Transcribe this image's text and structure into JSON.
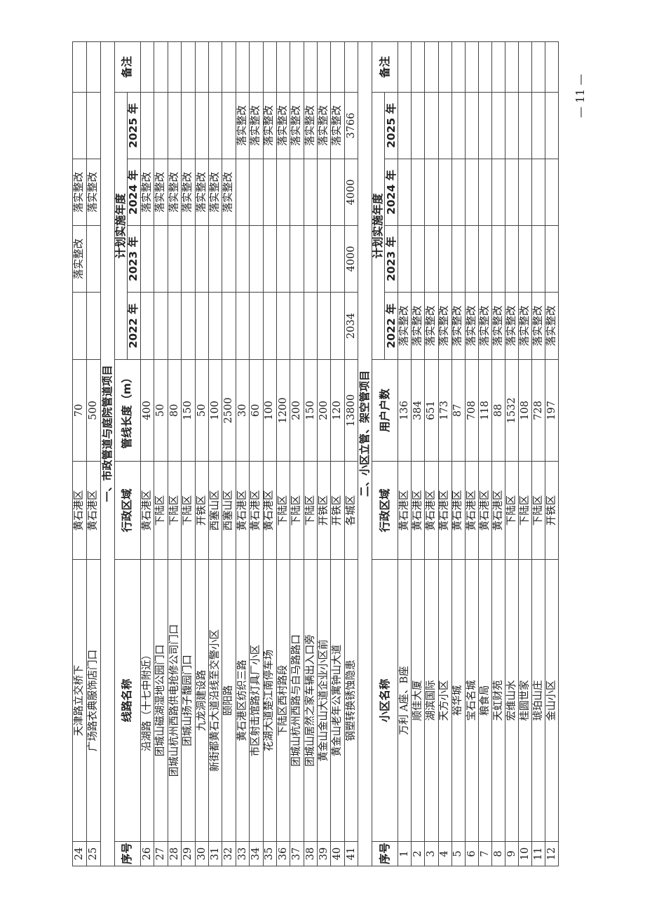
{
  "section1": {
    "title": "一、市政管道与庭院管道项目",
    "headers": {
      "no": "序号",
      "name": "线路名称",
      "district": "行政区域",
      "length": "管线长度（m）",
      "plan": "计划实施年度",
      "y2022": "2022 年",
      "y2023": "2023 年",
      "y2024": "2024 年",
      "y2025": "2025 年",
      "note": "备注"
    },
    "pre_rows": [
      {
        "no": "24",
        "name": "天津路立交桥下",
        "district": "黄石港区",
        "value": "70",
        "y2022": "",
        "y2023": "落实整改",
        "y2024": "落实整改",
        "y2025": "",
        "note": ""
      },
      {
        "no": "25",
        "name": "广场路衣典服饰店门口",
        "district": "黄石港区",
        "value": "500",
        "y2022": "",
        "y2023": "",
        "y2024": "落实整改",
        "y2025": "",
        "note": ""
      }
    ],
    "rows": [
      {
        "no": "26",
        "name": "沿湖路（十七中附近）",
        "district": "黄石港区",
        "value": "400",
        "y2022": "",
        "y2023": "",
        "y2024": "落实整改",
        "y2025": "",
        "note": ""
      },
      {
        "no": "27",
        "name": "团城山磁湖湿地公园门口",
        "district": "下陆区",
        "value": "50",
        "y2022": "",
        "y2023": "",
        "y2024": "落实整改",
        "y2025": "",
        "note": ""
      },
      {
        "no": "28",
        "name": "团城山杭州西路供电抢修公司门口",
        "district": "下陆区",
        "value": "80",
        "y2022": "",
        "y2023": "",
        "y2024": "落实整改",
        "y2025": "",
        "note": ""
      },
      {
        "no": "29",
        "name": "团城山扬子馥园门口",
        "district": "下陆区",
        "value": "150",
        "y2022": "",
        "y2023": "",
        "y2024": "落实整改",
        "y2025": "",
        "note": ""
      },
      {
        "no": "30",
        "name": "九龙洞建设路",
        "district": "开铁区",
        "value": "50",
        "y2022": "",
        "y2023": "",
        "y2024": "落实整改",
        "y2025": "",
        "note": ""
      },
      {
        "no": "31",
        "name": "新街都黄石大道沿线至交警小区",
        "district": "西塞山区",
        "value": "100",
        "y2022": "",
        "y2023": "",
        "y2024": "落实整改",
        "y2025": "",
        "note": ""
      },
      {
        "no": "32",
        "name": "颐阳路",
        "district": "西塞山区",
        "value": "2500",
        "y2022": "",
        "y2023": "",
        "y2024": "落实整改",
        "y2025": "",
        "note": ""
      },
      {
        "no": "33",
        "name": "黄石港区纺织三路",
        "district": "黄石港区",
        "value": "30",
        "y2022": "",
        "y2023": "",
        "y2024": "",
        "y2025": "落实整改",
        "note": ""
      },
      {
        "no": "34",
        "name": "市区射击馆路灯具厂小区",
        "district": "黄石港区",
        "value": "60",
        "y2022": "",
        "y2023": "",
        "y2024": "",
        "y2025": "落实整改",
        "note": ""
      },
      {
        "no": "35",
        "name": "花湖大道楚江南停车场",
        "district": "黄石港区",
        "value": "100",
        "y2022": "",
        "y2023": "",
        "y2024": "",
        "y2025": "落实整改",
        "note": ""
      },
      {
        "no": "36",
        "name": "下陆区西村路段",
        "district": "下陆区",
        "value": "1200",
        "y2022": "",
        "y2023": "",
        "y2024": "",
        "y2025": "落实整改",
        "note": ""
      },
      {
        "no": "37",
        "name": "团城山杭州西路与白马路路口",
        "district": "下陆区",
        "value": "200",
        "y2022": "",
        "y2023": "",
        "y2024": "",
        "y2025": "落实整改",
        "note": ""
      },
      {
        "no": "38",
        "name": "团城山居然之家车辆出入口旁",
        "district": "下陆区",
        "value": "150",
        "y2022": "",
        "y2023": "",
        "y2024": "",
        "y2025": "落实整改",
        "note": ""
      },
      {
        "no": "39",
        "name": "黄金山金山大道企业小区前",
        "district": "开铁区",
        "value": "200",
        "y2022": "",
        "y2023": "",
        "y2024": "",
        "y2025": "落实整改",
        "note": ""
      },
      {
        "no": "40",
        "name": "黄金山老年公寓钟山大道",
        "district": "开铁区",
        "value": "120",
        "y2022": "",
        "y2023": "",
        "y2024": "",
        "y2025": "落实整改",
        "note": ""
      },
      {
        "no": "41",
        "name": "钢塑转换锈蚀隐患",
        "district": "各城区",
        "value": "13800",
        "y2022": "2034",
        "y2023": "4000",
        "y2024": "4000",
        "y2025": "3766",
        "note": ""
      }
    ]
  },
  "section2": {
    "title": "二、小区立管、架空管项目",
    "headers": {
      "no": "序号",
      "name": "小区名称",
      "district": "行政区域",
      "length": "用户户数",
      "plan": "计划实施年度",
      "y2022": "2022 年",
      "y2023": "2023 年",
      "y2024": "2024 年",
      "y2025": "2025 年",
      "note": "备注"
    },
    "rows": [
      {
        "no": "1",
        "name": "万利 A座、B座",
        "district": "黄石港区",
        "value": "136",
        "y2022": "落实整改",
        "y2023": "",
        "y2024": "",
        "y2025": "",
        "note": ""
      },
      {
        "no": "2",
        "name": "顺佳大厦",
        "district": "黄石港区",
        "value": "384",
        "y2022": "落实整改",
        "y2023": "",
        "y2024": "",
        "y2025": "",
        "note": ""
      },
      {
        "no": "3",
        "name": "湖滨国际",
        "district": "黄石港区",
        "value": "651",
        "y2022": "落实整改",
        "y2023": "",
        "y2024": "",
        "y2025": "",
        "note": ""
      },
      {
        "no": "4",
        "name": "天方小区",
        "district": "黄石港区",
        "value": "173",
        "y2022": "落实整改",
        "y2023": "",
        "y2024": "",
        "y2025": "",
        "note": ""
      },
      {
        "no": "5",
        "name": "裕华城",
        "district": "黄石港区",
        "value": "87",
        "y2022": "落实整改",
        "y2023": "",
        "y2024": "",
        "y2025": "",
        "note": ""
      },
      {
        "no": "6",
        "name": "宝石名城",
        "district": "黄石港区",
        "value": "708",
        "y2022": "落实整改",
        "y2023": "",
        "y2024": "",
        "y2025": "",
        "note": ""
      },
      {
        "no": "7",
        "name": "粮食局",
        "district": "黄石港区",
        "value": "118",
        "y2022": "落实整改",
        "y2023": "",
        "y2024": "",
        "y2025": "",
        "note": ""
      },
      {
        "no": "8",
        "name": "天虹财苑",
        "district": "黄石港区",
        "value": "88",
        "y2022": "落实整改",
        "y2023": "",
        "y2024": "",
        "y2025": "",
        "note": ""
      },
      {
        "no": "9",
        "name": "宏维山水",
        "district": "下陆区",
        "value": "1532",
        "y2022": "落实整改",
        "y2023": "",
        "y2024": "",
        "y2025": "",
        "note": ""
      },
      {
        "no": "10",
        "name": "桂圆世家",
        "district": "下陆区",
        "value": "108",
        "y2022": "落实整改",
        "y2023": "",
        "y2024": "",
        "y2025": "",
        "note": ""
      },
      {
        "no": "11",
        "name": "琥珀山庄",
        "district": "下陆区",
        "value": "728",
        "y2022": "落实整改",
        "y2023": "",
        "y2024": "",
        "y2025": "",
        "note": ""
      },
      {
        "no": "12",
        "name": "金山小区",
        "district": "开铁区",
        "value": "197",
        "y2022": "落实整改",
        "y2023": "",
        "y2024": "",
        "y2025": "",
        "note": ""
      }
    ]
  },
  "page_number": "— 11 —"
}
